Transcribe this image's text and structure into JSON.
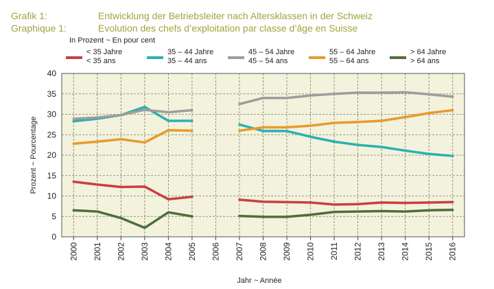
{
  "header": {
    "line1_label": "Grafik 1:",
    "line1_title": "Entwicklung der Betriebsleiter nach Altersklassen in der Schweiz",
    "line2_label": "Graphique 1:",
    "line2_title": "Evolution des chefs d’exploitation par classe d’âge en Suisse",
    "unit": "In Prozent   ~   En pour cent"
  },
  "chart_data": {
    "type": "line",
    "xlabel": "Jahr   ~   Année",
    "ylabel": "Prozent   ~   Pourcentage",
    "ylim": [
      0,
      40
    ],
    "yticks": [
      0,
      5,
      10,
      15,
      20,
      25,
      30,
      35,
      40
    ],
    "categories": [
      "2000",
      "2001",
      "2002",
      "2003",
      "2004",
      "2005",
      "2006",
      "2007",
      "2008",
      "2009",
      "2010",
      "2011",
      "2012",
      "2013",
      "2014",
      "2015",
      "2016"
    ],
    "grid": true,
    "legend_position": "top",
    "series": [
      {
        "name_de": "< 35 Jahre",
        "name_fr": "< 35 ans",
        "color": "#c8403f",
        "values": [
          13.5,
          12.8,
          12.2,
          12.3,
          9.2,
          9.8,
          null,
          9.1,
          8.6,
          8.5,
          8.4,
          7.9,
          8.0,
          8.4,
          8.3,
          8.4,
          8.5
        ]
      },
      {
        "name_de": "35 – 44 Jahre",
        "name_fr": "35 – 44 ans",
        "color": "#2ab0b3",
        "values": [
          28.3,
          28.9,
          29.8,
          31.8,
          28.4,
          28.4,
          null,
          27.5,
          25.9,
          25.9,
          24.5,
          23.3,
          22.5,
          22.0,
          21.1,
          20.3,
          19.8
        ]
      },
      {
        "name_de": "45 – 54 Jahre",
        "name_fr": "45 – 54 ans",
        "color": "#9f9c9b",
        "values": [
          28.9,
          29.2,
          29.8,
          31.1,
          30.5,
          31.0,
          null,
          32.5,
          34.0,
          34.0,
          34.6,
          35.0,
          35.3,
          35.3,
          35.4,
          34.9,
          34.3
        ]
      },
      {
        "name_de": "55 – 64 Jahre",
        "name_fr": "55 – 64 ans",
        "color": "#e89a2c",
        "values": [
          22.8,
          23.3,
          23.9,
          23.1,
          26.1,
          26.0,
          null,
          26.0,
          26.8,
          26.8,
          27.2,
          27.9,
          28.1,
          28.4,
          29.3,
          30.3,
          31.0
        ]
      },
      {
        "name_de": "> 64 Jahre",
        "name_fr": "> 64 ans",
        "color": "#4e6e3a",
        "values": [
          6.5,
          6.2,
          4.6,
          2.2,
          6.0,
          5.0,
          null,
          5.1,
          4.9,
          4.9,
          5.4,
          6.1,
          6.2,
          6.3,
          6.2,
          6.5,
          6.6
        ]
      }
    ]
  }
}
